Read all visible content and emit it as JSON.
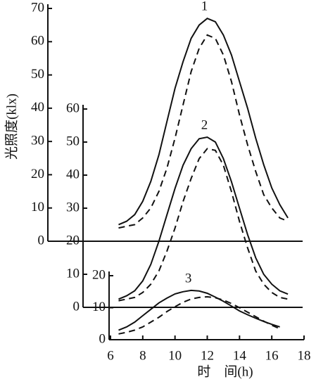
{
  "chart_data": [
    {
      "type": "line",
      "label": "1",
      "ylabel": "光照度(klx)",
      "x": [
        6.5,
        7,
        7.5,
        8,
        8.5,
        9,
        9.5,
        10,
        10.5,
        11,
        11.5,
        12,
        12.5,
        13,
        13.5,
        14,
        14.5,
        15,
        15.5,
        16,
        16.5,
        17
      ],
      "ylim": [
        0,
        70
      ],
      "yticks": [
        0,
        10,
        20,
        30,
        40,
        50,
        60,
        70
      ],
      "series": [
        {
          "style": "solid",
          "color": "#111111",
          "values": [
            5,
            6,
            8,
            12,
            18,
            26,
            36,
            46,
            54,
            61,
            65,
            67,
            66,
            62,
            56,
            48,
            40,
            31,
            23,
            16,
            11,
            7
          ]
        },
        {
          "style": "dashed",
          "color": "#111111",
          "values": [
            4,
            4.5,
            5,
            7,
            10,
            15,
            22,
            31,
            41,
            51,
            58,
            62,
            61,
            56,
            48,
            38,
            29,
            21,
            14,
            10,
            7,
            6
          ]
        }
      ]
    },
    {
      "type": "line",
      "label": "2",
      "x": [
        6.5,
        7,
        7.5,
        8,
        8.5,
        9,
        9.5,
        10,
        10.5,
        11,
        11.5,
        12,
        12.5,
        13,
        13.5,
        14,
        14.5,
        15,
        15.5,
        16,
        16.5,
        17
      ],
      "ylim": [
        0,
        60
      ],
      "yticks": [
        0,
        10,
        20,
        30,
        40,
        50,
        60
      ],
      "series": [
        {
          "style": "solid",
          "color": "#111111",
          "values": [
            2.5,
            3.5,
            5,
            8,
            13,
            20,
            28,
            36,
            43,
            48,
            51,
            51.5,
            50,
            45,
            38,
            30,
            22,
            15,
            10,
            7,
            5,
            4
          ]
        },
        {
          "style": "dashed",
          "color": "#111111",
          "values": [
            2,
            2.5,
            3,
            4.5,
            7,
            11,
            17,
            24,
            32,
            39,
            45,
            48,
            47.5,
            43,
            35,
            26,
            18,
            11,
            7,
            4.5,
            3,
            2.5
          ]
        }
      ]
    },
    {
      "type": "line",
      "label": "3",
      "xlabel": "时　间(h)",
      "x": [
        6.5,
        7,
        7.5,
        8,
        8.5,
        9,
        9.5,
        10,
        10.5,
        11,
        11.5,
        12,
        12.5,
        13,
        13.5,
        14,
        14.5,
        15,
        15.5,
        16,
        16.5,
        17
      ],
      "xlim": [
        6,
        18
      ],
      "xticks": [
        6,
        8,
        10,
        12,
        14,
        16,
        18
      ],
      "ylim": [
        0,
        20
      ],
      "yticks": [
        0,
        10,
        20
      ],
      "series": [
        {
          "style": "solid",
          "color": "#111111",
          "values": [
            3,
            4,
            5.5,
            7.5,
            9.5,
            11.5,
            13,
            14.3,
            15,
            15.4,
            15.2,
            14.5,
            13.3,
            12,
            10.5,
            9,
            7.8,
            6.7,
            5.7,
            4.8,
            4,
            null
          ]
        },
        {
          "style": "dashed",
          "color": "#111111",
          "values": [
            1.8,
            2.3,
            3,
            4,
            5.5,
            7,
            8.8,
            10.3,
            11.7,
            12.7,
            13.2,
            13.4,
            13.1,
            12.4,
            11.3,
            10,
            8.6,
            7.2,
            5.8,
            4.5,
            3.4,
            null
          ]
        }
      ]
    }
  ]
}
